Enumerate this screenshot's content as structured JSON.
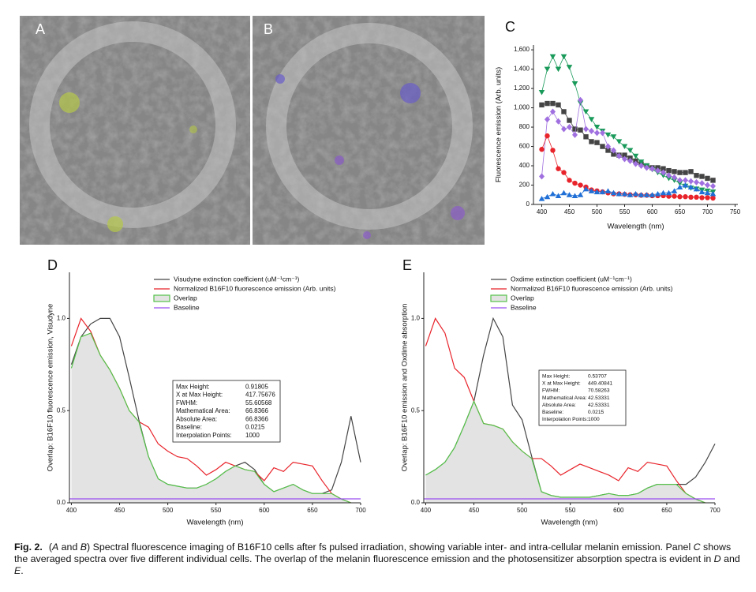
{
  "panels": [
    "A",
    "B"
  ],
  "chart_data": [
    {
      "type": "line",
      "label": "C",
      "x_label": "Wavelength (nm)",
      "y_label": "Fluorescence emission (Arb. units)",
      "xlim": [
        385,
        755
      ],
      "xticks": [
        400,
        450,
        500,
        550,
        600,
        650,
        700,
        750
      ],
      "ylim": [
        0,
        1650
      ],
      "yticks": [
        0,
        200,
        400,
        600,
        800,
        {
          "value": 1000,
          "label": "1,000"
        },
        {
          "value": 1200,
          "label": "1,200"
        },
        {
          "value": 1400,
          "label": "1,400"
        },
        {
          "value": 1600,
          "label": "1,600"
        }
      ],
      "x": [
        400,
        410,
        420,
        430,
        440,
        450,
        460,
        470,
        480,
        490,
        500,
        510,
        520,
        530,
        540,
        550,
        560,
        570,
        580,
        590,
        600,
        610,
        620,
        630,
        640,
        650,
        660,
        670,
        680,
        690,
        700,
        710
      ],
      "series": [
        {
          "color": "#444444",
          "marker": "square",
          "values": [
            1030,
            1045,
            1045,
            1030,
            960,
            870,
            780,
            770,
            700,
            650,
            640,
            600,
            560,
            520,
            510,
            510,
            480,
            450,
            420,
            400,
            380,
            380,
            370,
            350,
            340,
            330,
            330,
            340,
            300,
            290,
            270,
            250
          ]
        },
        {
          "color": "#1a9a5a",
          "marker": "triangle-down",
          "values": [
            1160,
            1400,
            1530,
            1400,
            1530,
            1420,
            1250,
            1050,
            960,
            880,
            800,
            760,
            720,
            700,
            650,
            600,
            560,
            500,
            440,
            400,
            360,
            330,
            300,
            270,
            250,
            220,
            190,
            170,
            160,
            150,
            140,
            130
          ]
        },
        {
          "color": "#a070e0",
          "marker": "diamond",
          "values": [
            290,
            880,
            960,
            860,
            780,
            800,
            720,
            1080,
            780,
            760,
            740,
            740,
            600,
            560,
            500,
            470,
            450,
            420,
            400,
            380,
            370,
            350,
            330,
            300,
            280,
            250,
            250,
            240,
            230,
            220,
            200,
            190
          ]
        },
        {
          "color": "#e8232a",
          "marker": "circle",
          "values": [
            570,
            710,
            560,
            370,
            330,
            250,
            220,
            200,
            180,
            150,
            140,
            130,
            120,
            110,
            110,
            105,
            100,
            100,
            95,
            95,
            90,
            90,
            90,
            85,
            85,
            80,
            80,
            75,
            75,
            70,
            70,
            65
          ]
        },
        {
          "color": "#1f6fd6",
          "marker": "triangle-up",
          "values": [
            60,
            80,
            110,
            90,
            120,
            100,
            90,
            100,
            160,
            140,
            130,
            130,
            140,
            120,
            110,
            110,
            100,
            110,
            100,
            100,
            100,
            110,
            120,
            120,
            140,
            180,
            200,
            180,
            160,
            130,
            120,
            110
          ]
        }
      ]
    },
    {
      "type": "line",
      "label": "D",
      "x_label": "Wavelength (nm)",
      "y_label": "Overlap: B16F10 fluorescence emission, Visudyne",
      "xlim": [
        398,
        700
      ],
      "xticks": [
        400,
        450,
        500,
        550,
        600,
        650,
        700
      ],
      "ylim": [
        0,
        1.25
      ],
      "yticks": [
        {
          "value": 0,
          "label": "0.0"
        },
        0.5,
        {
          "value": 1,
          "label": "1.0"
        }
      ],
      "x": [
        400,
        410,
        420,
        430,
        440,
        450,
        460,
        470,
        480,
        490,
        500,
        510,
        520,
        530,
        540,
        550,
        560,
        570,
        580,
        590,
        600,
        610,
        620,
        630,
        640,
        650,
        660,
        670,
        680,
        690,
        700
      ],
      "series": [
        {
          "name": "Visudyne extinction coefficient (uM⁻¹cm⁻¹)",
          "color": "#444444",
          "values": [
            0.75,
            0.9,
            0.97,
            1.0,
            1.0,
            0.9,
            0.68,
            0.45,
            0.25,
            0.13,
            0.1,
            0.09,
            0.08,
            0.08,
            0.1,
            0.13,
            0.17,
            0.2,
            0.22,
            0.18,
            0.1,
            0.06,
            0.08,
            0.1,
            0.07,
            0.05,
            0.05,
            0.07,
            0.22,
            0.47,
            0.22
          ]
        },
        {
          "name": "Normalized B16F10 fluorescence emission (Arb. units)",
          "color": "#e8232a",
          "values": [
            0.85,
            1.0,
            0.93,
            0.8,
            0.72,
            0.62,
            0.5,
            0.44,
            0.41,
            0.32,
            0.28,
            0.25,
            0.24,
            0.2,
            0.15,
            0.18,
            0.22,
            0.2,
            0.18,
            0.17,
            0.12,
            0.19,
            0.17,
            0.22,
            0.21,
            0.2,
            0.12,
            0.05,
            0.02,
            0,
            null
          ]
        },
        {
          "name": "Overlap",
          "color": "#55c24a",
          "fill": "#e3e3e3",
          "values": [
            0.73,
            0.9,
            0.92,
            0.8,
            0.72,
            0.62,
            0.5,
            0.44,
            0.25,
            0.13,
            0.1,
            0.09,
            0.08,
            0.08,
            0.1,
            0.13,
            0.17,
            0.2,
            0.18,
            0.17,
            0.1,
            0.06,
            0.08,
            0.1,
            0.07,
            0.05,
            0.05,
            0.05,
            0.02,
            0,
            null
          ]
        }
      ],
      "baseline": {
        "name": "Baseline",
        "color": "#9b4df0",
        "value": 0.0215
      },
      "stats": [
        [
          "Max Height:",
          "0.91805"
        ],
        [
          "X at Max Height:",
          "417.75676"
        ],
        [
          "FWHM:",
          "55.60568"
        ],
        [
          "Mathematical Area:",
          "66.8366"
        ],
        [
          "Absolute Area:",
          "66.8366"
        ],
        [
          "Baseline:",
          "0.0215"
        ],
        [
          "Interpolation Points:",
          "1000"
        ]
      ]
    },
    {
      "type": "line",
      "label": "E",
      "x_label": "Wavelength (nm)",
      "y_label": "Overlap: B16F10 emission and Oxdime absorption",
      "xlim": [
        398,
        700
      ],
      "xticks": [
        400,
        450,
        500,
        550,
        600,
        650,
        700
      ],
      "ylim": [
        0,
        1.25
      ],
      "yticks": [
        {
          "value": 0,
          "label": "0.0"
        },
        0.5,
        {
          "value": 1,
          "label": "1.0"
        }
      ],
      "x": [
        400,
        410,
        420,
        430,
        440,
        450,
        460,
        470,
        480,
        490,
        500,
        510,
        520,
        530,
        540,
        550,
        560,
        570,
        580,
        590,
        600,
        610,
        620,
        630,
        640,
        650,
        660,
        670,
        680,
        690,
        700
      ],
      "series": [
        {
          "name": "Oxdime extinction coefficient (uM⁻¹cm⁻¹)",
          "color": "#444444",
          "values": [
            0.15,
            0.18,
            0.22,
            0.3,
            0.42,
            0.55,
            0.8,
            1.0,
            0.9,
            0.53,
            0.45,
            0.25,
            0.06,
            0.04,
            0.03,
            0.03,
            0.03,
            0.03,
            0.04,
            0.05,
            0.04,
            0.04,
            0.05,
            0.08,
            0.1,
            0.1,
            0.1,
            0.1,
            0.14,
            0.22,
            0.32
          ]
        },
        {
          "name": "Normalized B16F10 fluorescence emission (Arb. units)",
          "color": "#e8232a",
          "values": [
            0.85,
            1.0,
            0.92,
            0.73,
            0.68,
            0.55,
            0.43,
            0.42,
            0.4,
            0.33,
            0.28,
            0.24,
            0.24,
            0.2,
            0.15,
            0.18,
            0.21,
            0.19,
            0.17,
            0.15,
            0.12,
            0.19,
            0.17,
            0.22,
            0.21,
            0.2,
            0.12,
            0.05,
            0.02,
            0,
            null
          ]
        },
        {
          "name": "Overlap",
          "color": "#55c24a",
          "fill": "#e3e3e3",
          "values": [
            0.15,
            0.18,
            0.22,
            0.3,
            0.42,
            0.55,
            0.43,
            0.42,
            0.4,
            0.33,
            0.28,
            0.24,
            0.06,
            0.04,
            0.03,
            0.03,
            0.03,
            0.03,
            0.04,
            0.05,
            0.04,
            0.04,
            0.05,
            0.08,
            0.1,
            0.1,
            0.1,
            0.05,
            0.02,
            0,
            null
          ]
        }
      ],
      "baseline": {
        "name": "Baseline",
        "color": "#9b4df0",
        "value": 0.0215
      },
      "stats": [
        [
          "Max Height:",
          "0.53707"
        ],
        [
          "X at Max Height:",
          "449.40841"
        ],
        [
          "FWHM:",
          "70.58263"
        ],
        [
          "Mathematical Area:",
          "42.53331"
        ],
        [
          "Absolute Area:",
          "42.53331"
        ],
        [
          "Baseline:",
          "0.0215"
        ],
        [
          "Interpolation Points:",
          "1000"
        ]
      ]
    }
  ],
  "caption": {
    "label": "Fig. 2.",
    "parts": [
      "(",
      "A",
      " and ",
      "B",
      ") Spectral fluorescence imaging of B16F10 cells after fs pulsed irradiation, showing variable inter- and intra-cellular melanin emission. Panel ",
      "C",
      " shows the averaged spectra over five different individual cells. The overlap of the melanin fluorescence emission and the photosensitizer absorption spectra is evident in ",
      "D",
      " and ",
      "E",
      "."
    ]
  }
}
